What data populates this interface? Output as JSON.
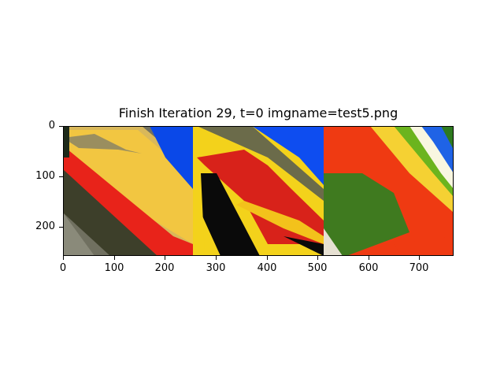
{
  "title": "Finish Iteration 29, t=0 imgname=test5.png",
  "image_panels": [
    {
      "name": "panel-1",
      "description_colors": [
        "#f2c641",
        "#e8231a",
        "#0a48e8",
        "#4b4a34"
      ]
    },
    {
      "name": "panel-2",
      "description_colors": [
        "#f3d21b",
        "#d8221a",
        "#0a0a0a",
        "#0e4df0"
      ]
    },
    {
      "name": "panel-3",
      "description_colors": [
        "#ef3a12",
        "#3f7a1f",
        "#f5d133",
        "#1f63e6"
      ]
    }
  ],
  "axes": {
    "xticks": [
      "0",
      "100",
      "200",
      "300",
      "400",
      "500",
      "600",
      "700"
    ],
    "yticks": [
      "0",
      "100",
      "200"
    ],
    "xlim": [
      0,
      768
    ],
    "ylim": [
      256,
      0
    ]
  }
}
